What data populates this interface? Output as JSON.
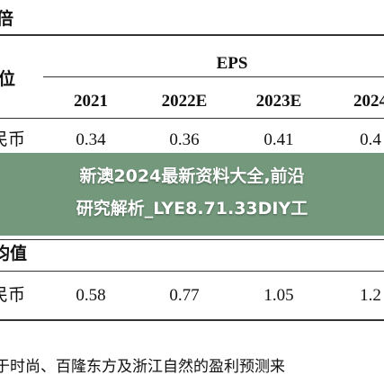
{
  "table": {
    "top_label": "倍",
    "unit_label": "位",
    "group": "EPS",
    "columns": [
      "2021",
      "2022E",
      "2023E",
      "2024"
    ],
    "rows": [
      {
        "label": "民币",
        "cells": [
          "0.34",
          "0.36",
          "0.41",
          "0.4"
        ]
      }
    ],
    "section": "均值",
    "section_rows": [
      {
        "label": "民币",
        "cells": [
          "0.58",
          "0.77",
          "1.05",
          "1.2"
        ]
      }
    ],
    "footnote": "于时尚、百隆东方及浙江自然的盈利预测来"
  },
  "banner": {
    "lines": [
      "新澳2024最新资料大全,前沿",
      "研究解析_LYE8.71.33DIY工"
    ]
  }
}
